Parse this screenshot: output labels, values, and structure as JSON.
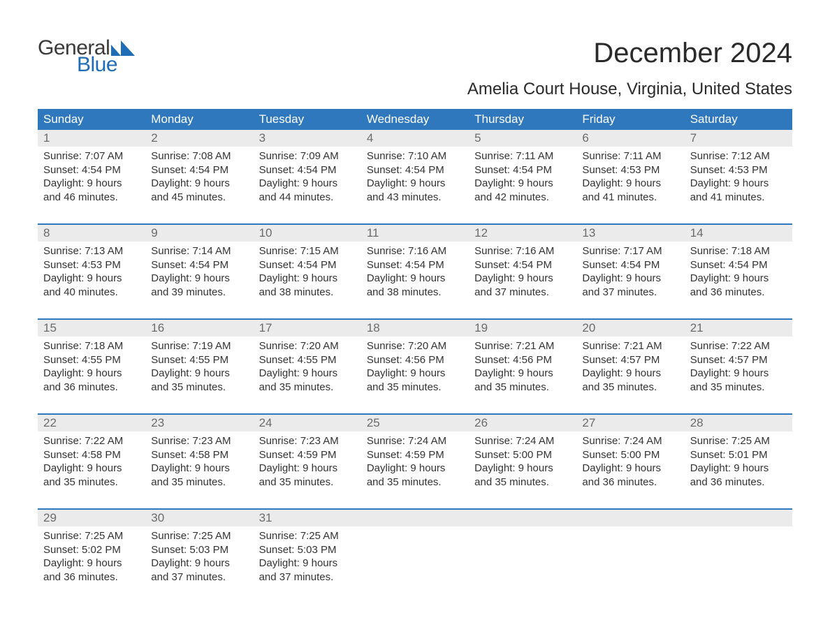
{
  "logo": {
    "word1": "General",
    "word2": "Blue",
    "mark_color": "#1e6db6"
  },
  "title": "December 2024",
  "subtitle": "Amelia Court House, Virginia, United States",
  "colors": {
    "header_bg": "#2f78bd",
    "header_text": "#ffffff",
    "daynum_bg": "#ebebeb",
    "daynum_text": "#6b6b6b",
    "body_text": "#333333",
    "week_border": "#2f78bd",
    "page_bg": "#ffffff"
  },
  "weekdays": [
    "Sunday",
    "Monday",
    "Tuesday",
    "Wednesday",
    "Thursday",
    "Friday",
    "Saturday"
  ],
  "weeks": [
    [
      {
        "n": "1",
        "sr": "Sunrise: 7:07 AM",
        "ss": "Sunset: 4:54 PM",
        "d1": "Daylight: 9 hours",
        "d2": "and 46 minutes."
      },
      {
        "n": "2",
        "sr": "Sunrise: 7:08 AM",
        "ss": "Sunset: 4:54 PM",
        "d1": "Daylight: 9 hours",
        "d2": "and 45 minutes."
      },
      {
        "n": "3",
        "sr": "Sunrise: 7:09 AM",
        "ss": "Sunset: 4:54 PM",
        "d1": "Daylight: 9 hours",
        "d2": "and 44 minutes."
      },
      {
        "n": "4",
        "sr": "Sunrise: 7:10 AM",
        "ss": "Sunset: 4:54 PM",
        "d1": "Daylight: 9 hours",
        "d2": "and 43 minutes."
      },
      {
        "n": "5",
        "sr": "Sunrise: 7:11 AM",
        "ss": "Sunset: 4:54 PM",
        "d1": "Daylight: 9 hours",
        "d2": "and 42 minutes."
      },
      {
        "n": "6",
        "sr": "Sunrise: 7:11 AM",
        "ss": "Sunset: 4:53 PM",
        "d1": "Daylight: 9 hours",
        "d2": "and 41 minutes."
      },
      {
        "n": "7",
        "sr": "Sunrise: 7:12 AM",
        "ss": "Sunset: 4:53 PM",
        "d1": "Daylight: 9 hours",
        "d2": "and 41 minutes."
      }
    ],
    [
      {
        "n": "8",
        "sr": "Sunrise: 7:13 AM",
        "ss": "Sunset: 4:53 PM",
        "d1": "Daylight: 9 hours",
        "d2": "and 40 minutes."
      },
      {
        "n": "9",
        "sr": "Sunrise: 7:14 AM",
        "ss": "Sunset: 4:54 PM",
        "d1": "Daylight: 9 hours",
        "d2": "and 39 minutes."
      },
      {
        "n": "10",
        "sr": "Sunrise: 7:15 AM",
        "ss": "Sunset: 4:54 PM",
        "d1": "Daylight: 9 hours",
        "d2": "and 38 minutes."
      },
      {
        "n": "11",
        "sr": "Sunrise: 7:16 AM",
        "ss": "Sunset: 4:54 PM",
        "d1": "Daylight: 9 hours",
        "d2": "and 38 minutes."
      },
      {
        "n": "12",
        "sr": "Sunrise: 7:16 AM",
        "ss": "Sunset: 4:54 PM",
        "d1": "Daylight: 9 hours",
        "d2": "and 37 minutes."
      },
      {
        "n": "13",
        "sr": "Sunrise: 7:17 AM",
        "ss": "Sunset: 4:54 PM",
        "d1": "Daylight: 9 hours",
        "d2": "and 37 minutes."
      },
      {
        "n": "14",
        "sr": "Sunrise: 7:18 AM",
        "ss": "Sunset: 4:54 PM",
        "d1": "Daylight: 9 hours",
        "d2": "and 36 minutes."
      }
    ],
    [
      {
        "n": "15",
        "sr": "Sunrise: 7:18 AM",
        "ss": "Sunset: 4:55 PM",
        "d1": "Daylight: 9 hours",
        "d2": "and 36 minutes."
      },
      {
        "n": "16",
        "sr": "Sunrise: 7:19 AM",
        "ss": "Sunset: 4:55 PM",
        "d1": "Daylight: 9 hours",
        "d2": "and 35 minutes."
      },
      {
        "n": "17",
        "sr": "Sunrise: 7:20 AM",
        "ss": "Sunset: 4:55 PM",
        "d1": "Daylight: 9 hours",
        "d2": "and 35 minutes."
      },
      {
        "n": "18",
        "sr": "Sunrise: 7:20 AM",
        "ss": "Sunset: 4:56 PM",
        "d1": "Daylight: 9 hours",
        "d2": "and 35 minutes."
      },
      {
        "n": "19",
        "sr": "Sunrise: 7:21 AM",
        "ss": "Sunset: 4:56 PM",
        "d1": "Daylight: 9 hours",
        "d2": "and 35 minutes."
      },
      {
        "n": "20",
        "sr": "Sunrise: 7:21 AM",
        "ss": "Sunset: 4:57 PM",
        "d1": "Daylight: 9 hours",
        "d2": "and 35 minutes."
      },
      {
        "n": "21",
        "sr": "Sunrise: 7:22 AM",
        "ss": "Sunset: 4:57 PM",
        "d1": "Daylight: 9 hours",
        "d2": "and 35 minutes."
      }
    ],
    [
      {
        "n": "22",
        "sr": "Sunrise: 7:22 AM",
        "ss": "Sunset: 4:58 PM",
        "d1": "Daylight: 9 hours",
        "d2": "and 35 minutes."
      },
      {
        "n": "23",
        "sr": "Sunrise: 7:23 AM",
        "ss": "Sunset: 4:58 PM",
        "d1": "Daylight: 9 hours",
        "d2": "and 35 minutes."
      },
      {
        "n": "24",
        "sr": "Sunrise: 7:23 AM",
        "ss": "Sunset: 4:59 PM",
        "d1": "Daylight: 9 hours",
        "d2": "and 35 minutes."
      },
      {
        "n": "25",
        "sr": "Sunrise: 7:24 AM",
        "ss": "Sunset: 4:59 PM",
        "d1": "Daylight: 9 hours",
        "d2": "and 35 minutes."
      },
      {
        "n": "26",
        "sr": "Sunrise: 7:24 AM",
        "ss": "Sunset: 5:00 PM",
        "d1": "Daylight: 9 hours",
        "d2": "and 35 minutes."
      },
      {
        "n": "27",
        "sr": "Sunrise: 7:24 AM",
        "ss": "Sunset: 5:00 PM",
        "d1": "Daylight: 9 hours",
        "d2": "and 36 minutes."
      },
      {
        "n": "28",
        "sr": "Sunrise: 7:25 AM",
        "ss": "Sunset: 5:01 PM",
        "d1": "Daylight: 9 hours",
        "d2": "and 36 minutes."
      }
    ],
    [
      {
        "n": "29",
        "sr": "Sunrise: 7:25 AM",
        "ss": "Sunset: 5:02 PM",
        "d1": "Daylight: 9 hours",
        "d2": "and 36 minutes."
      },
      {
        "n": "30",
        "sr": "Sunrise: 7:25 AM",
        "ss": "Sunset: 5:03 PM",
        "d1": "Daylight: 9 hours",
        "d2": "and 37 minutes."
      },
      {
        "n": "31",
        "sr": "Sunrise: 7:25 AM",
        "ss": "Sunset: 5:03 PM",
        "d1": "Daylight: 9 hours",
        "d2": "and 37 minutes."
      },
      null,
      null,
      null,
      null
    ]
  ]
}
